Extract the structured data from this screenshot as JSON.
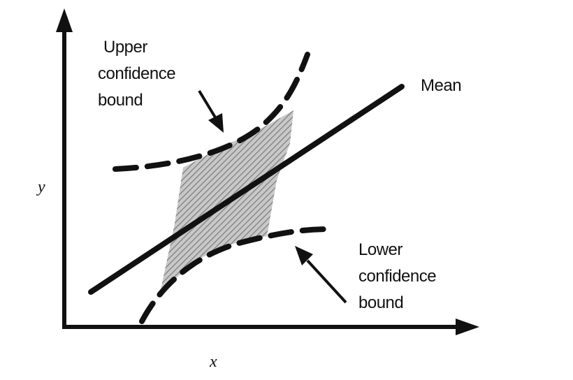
{
  "labels": {
    "upper_bound": [
      "Upper",
      "confidence",
      "bound"
    ],
    "lower_bound": [
      "Lower",
      "confidence",
      "bound"
    ],
    "mean": "Mean",
    "x_axis": "x",
    "y_axis": "y"
  },
  "colors": {
    "ink": "#111111",
    "shading": "#8a8a8a",
    "background": "#ffffff"
  }
}
